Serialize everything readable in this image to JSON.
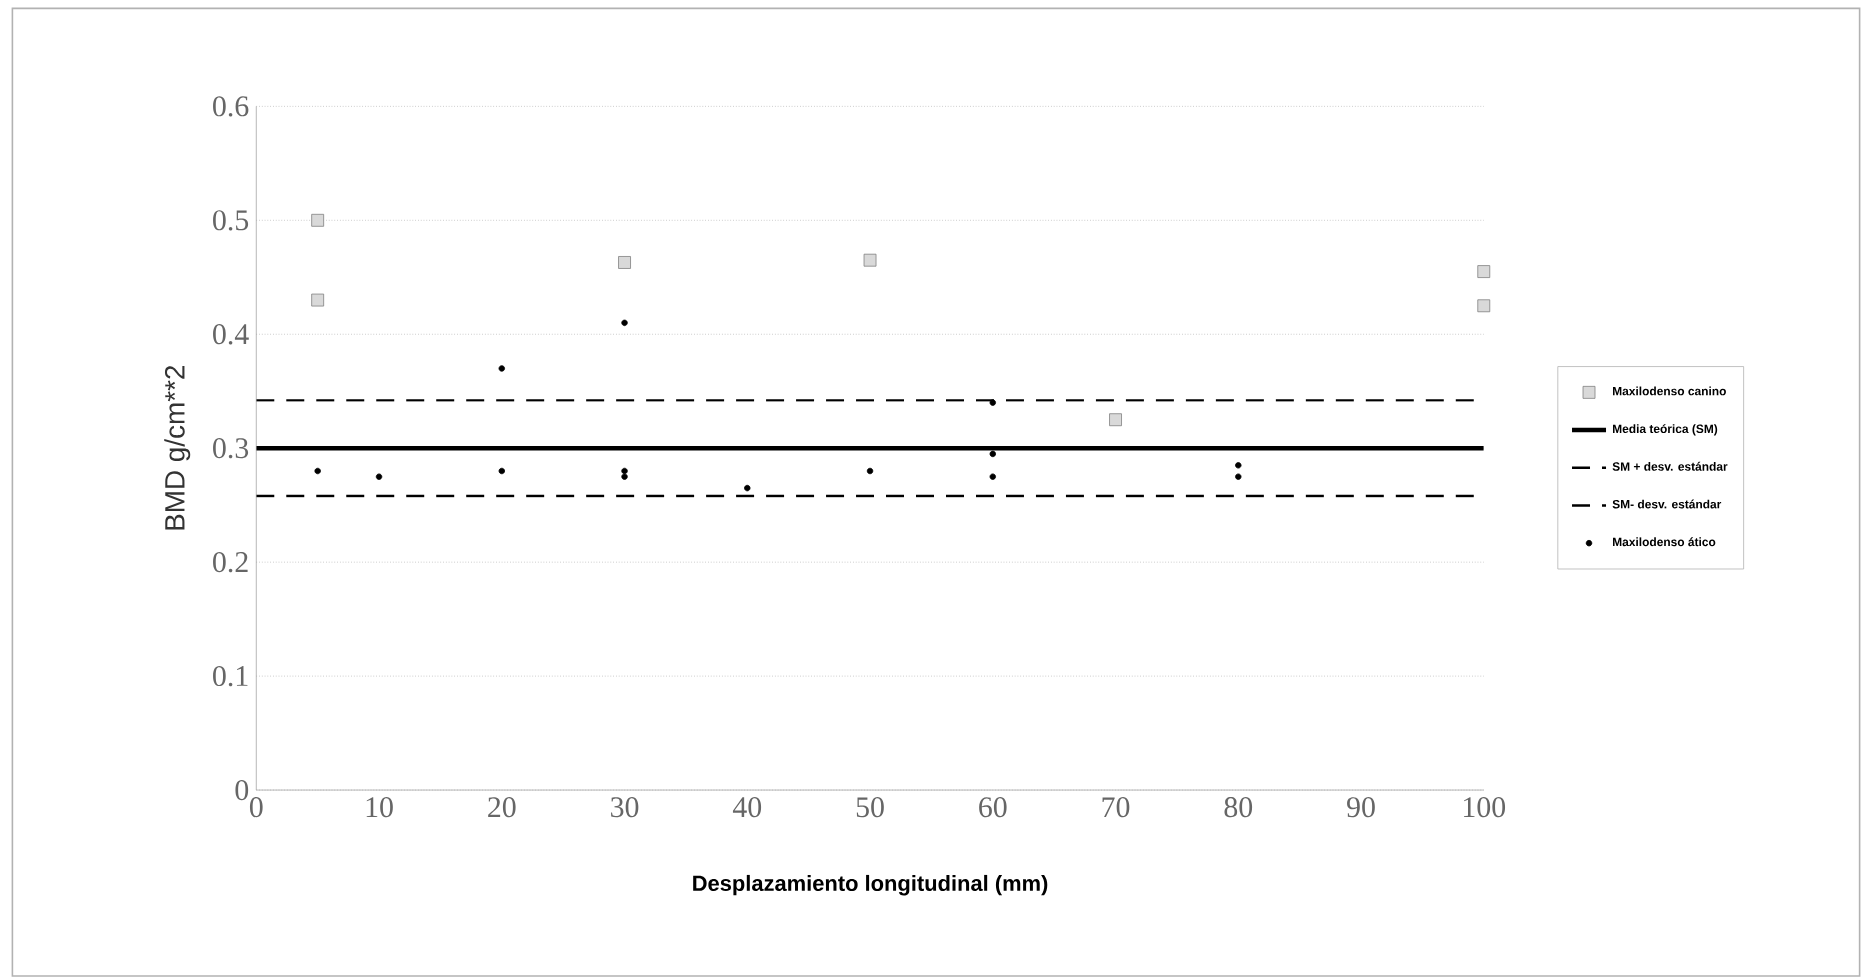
{
  "chart_data": {
    "type": "scatter",
    "xlabel": "Desplazamiento longitudinal (mm)",
    "ylabel": "BMD g/cm**2",
    "xlim": [
      0,
      100
    ],
    "xticks": [
      0,
      10,
      20,
      30,
      40,
      50,
      60,
      70,
      80,
      90,
      100
    ],
    "ylim": [
      0,
      0.6
    ],
    "yticks": [
      0,
      0.1,
      0.2,
      0.3,
      0.4,
      0.5,
      0.6
    ],
    "grid": "y",
    "legend": "right",
    "series": [
      {
        "name": "Maxilodenso canino",
        "marker": "square",
        "color": "#808080",
        "x": [
          5,
          5,
          30,
          50,
          70,
          100,
          100
        ],
        "values": [
          0.5,
          0.43,
          0.463,
          0.465,
          0.325,
          0.455,
          0.425
        ]
      },
      {
        "name": "Media teórica (SM)",
        "type": "line",
        "marker": "none",
        "line_style": "solid",
        "color": "#000000",
        "x": [
          0,
          100
        ],
        "values": [
          0.3,
          0.3
        ]
      },
      {
        "name": "SM + desv. estándar",
        "type": "line",
        "marker": "none",
        "line_style": "dashed",
        "color": "#000000",
        "x": [
          0,
          100
        ],
        "values": [
          0.342,
          0.342
        ]
      },
      {
        "name": "SM- desv. estándar",
        "type": "line",
        "marker": "none",
        "line_style": "dashed",
        "color": "#000000",
        "x": [
          0,
          100
        ],
        "values": [
          0.258,
          0.258
        ]
      },
      {
        "name": "Maxilodenso ático",
        "marker": "circle",
        "color": "#000000",
        "x": [
          5,
          10,
          20,
          20,
          30,
          30,
          30,
          40,
          50,
          60,
          60,
          60,
          80,
          80
        ],
        "values": [
          0.28,
          0.275,
          0.37,
          0.28,
          0.41,
          0.28,
          0.275,
          0.265,
          0.28,
          0.34,
          0.295,
          0.275,
          0.285,
          0.275
        ]
      }
    ]
  }
}
